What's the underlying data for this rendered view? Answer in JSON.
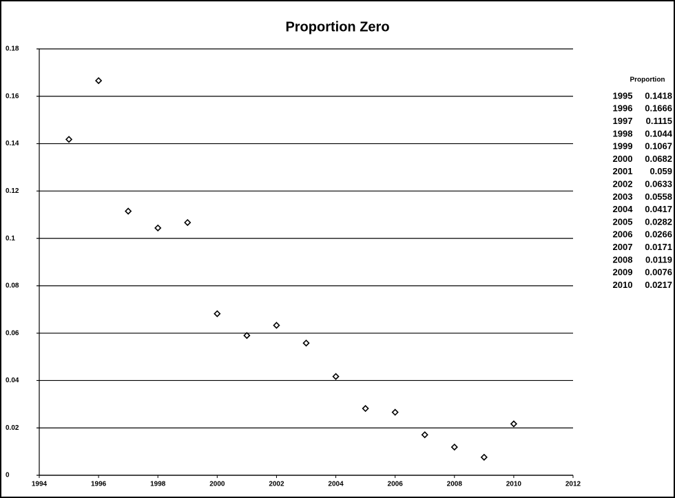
{
  "chart_data": {
    "type": "scatter",
    "title": "Proportion Zero",
    "x": [
      1995,
      1996,
      1997,
      1998,
      1999,
      2000,
      2001,
      2002,
      2003,
      2004,
      2005,
      2006,
      2007,
      2008,
      2009,
      2010
    ],
    "values": [
      0.1418,
      0.1666,
      0.1115,
      0.1044,
      0.1067,
      0.0682,
      0.059,
      0.0633,
      0.0558,
      0.0417,
      0.0282,
      0.0266,
      0.0171,
      0.0119,
      0.0076,
      0.0217
    ],
    "table_title": "Proportion",
    "color": "#000000",
    "xlim": [
      1994,
      2012
    ],
    "xticks": [
      1994,
      1996,
      1998,
      2000,
      2002,
      2004,
      2006,
      2008,
      2010,
      2012
    ],
    "ylim": [
      0,
      0.18
    ],
    "yticks": [
      0,
      0.02,
      0.04,
      0.06,
      0.08,
      0.1,
      0.12,
      0.14,
      0.16,
      0.18
    ],
    "grid": true
  }
}
